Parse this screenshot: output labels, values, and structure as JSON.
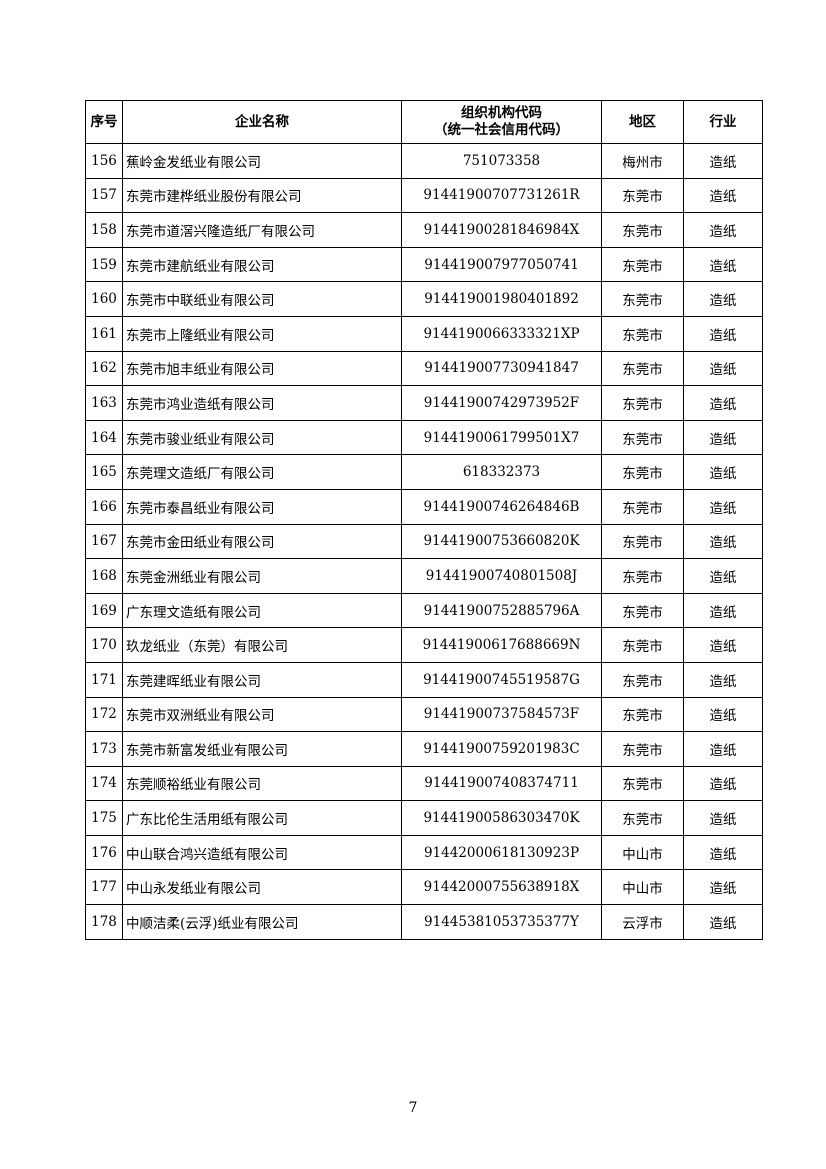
{
  "header": {
    "no": "序号",
    "name": "企业名称",
    "code_line1": "组织机构代码",
    "code_line2": "（统一社会信用代码）",
    "region": "地区",
    "industry": "行业"
  },
  "rows": [
    [
      "156",
      "蕉岭金发纸业有限公司",
      "751073358",
      "梅州市",
      "造纸"
    ],
    [
      "157",
      "东莞市建桦纸业股份有限公司",
      "91441900707731261R",
      "东莞市",
      "造纸"
    ],
    [
      "158",
      "东莞市道滘兴隆造纸厂有限公司",
      "91441900281846984X",
      "东莞市",
      "造纸"
    ],
    [
      "159",
      "东莞市建航纸业有限公司",
      "914419007977050741",
      "东莞市",
      "造纸"
    ],
    [
      "160",
      "东莞市中联纸业有限公司",
      "914419001980401892",
      "东莞市",
      "造纸"
    ],
    [
      "161",
      "东莞市上隆纸业有限公司",
      "9144190066333321XP",
      "东莞市",
      "造纸"
    ],
    [
      "162",
      "东莞市旭丰纸业有限公司",
      "914419007730941847",
      "东莞市",
      "造纸"
    ],
    [
      "163",
      "东莞市鸿业造纸有限公司",
      "91441900742973952F",
      "东莞市",
      "造纸"
    ],
    [
      "164",
      "东莞市骏业纸业有限公司",
      "9144190061799501X7",
      "东莞市",
      "造纸"
    ],
    [
      "165",
      "东莞理文造纸厂有限公司",
      "618332373",
      "东莞市",
      "造纸"
    ],
    [
      "166",
      "东莞市泰昌纸业有限公司",
      "91441900746264846B",
      "东莞市",
      "造纸"
    ],
    [
      "167",
      "东莞市金田纸业有限公司",
      "91441900753660820K",
      "东莞市",
      "造纸"
    ],
    [
      "168",
      "东莞金洲纸业有限公司",
      "91441900740801508J",
      "东莞市",
      "造纸"
    ],
    [
      "169",
      "广东理文造纸有限公司",
      "91441900752885796A",
      "东莞市",
      "造纸"
    ],
    [
      "170",
      "玖龙纸业（东莞）有限公司",
      "91441900617688669N",
      "东莞市",
      "造纸"
    ],
    [
      "171",
      "东莞建晖纸业有限公司",
      "91441900745519587G",
      "东莞市",
      "造纸"
    ],
    [
      "172",
      "东莞市双洲纸业有限公司",
      "91441900737584573F",
      "东莞市",
      "造纸"
    ],
    [
      "173",
      "东莞市新富发纸业有限公司",
      "91441900759201983C",
      "东莞市",
      "造纸"
    ],
    [
      "174",
      "东莞顺裕纸业有限公司",
      "914419007408374711",
      "东莞市",
      "造纸"
    ],
    [
      "175",
      "广东比伦生活用纸有限公司",
      "91441900586303470K",
      "东莞市",
      "造纸"
    ],
    [
      "176",
      "中山联合鸿兴造纸有限公司",
      "91442000618130923P",
      "中山市",
      "造纸"
    ],
    [
      "177",
      "中山永发纸业有限公司",
      "91442000755638918X",
      "中山市",
      "造纸"
    ],
    [
      "178",
      "中顺洁柔(云浮)纸业有限公司",
      "91445381053735377Y",
      "云浮市",
      "造纸"
    ]
  ],
  "page_number": "7"
}
